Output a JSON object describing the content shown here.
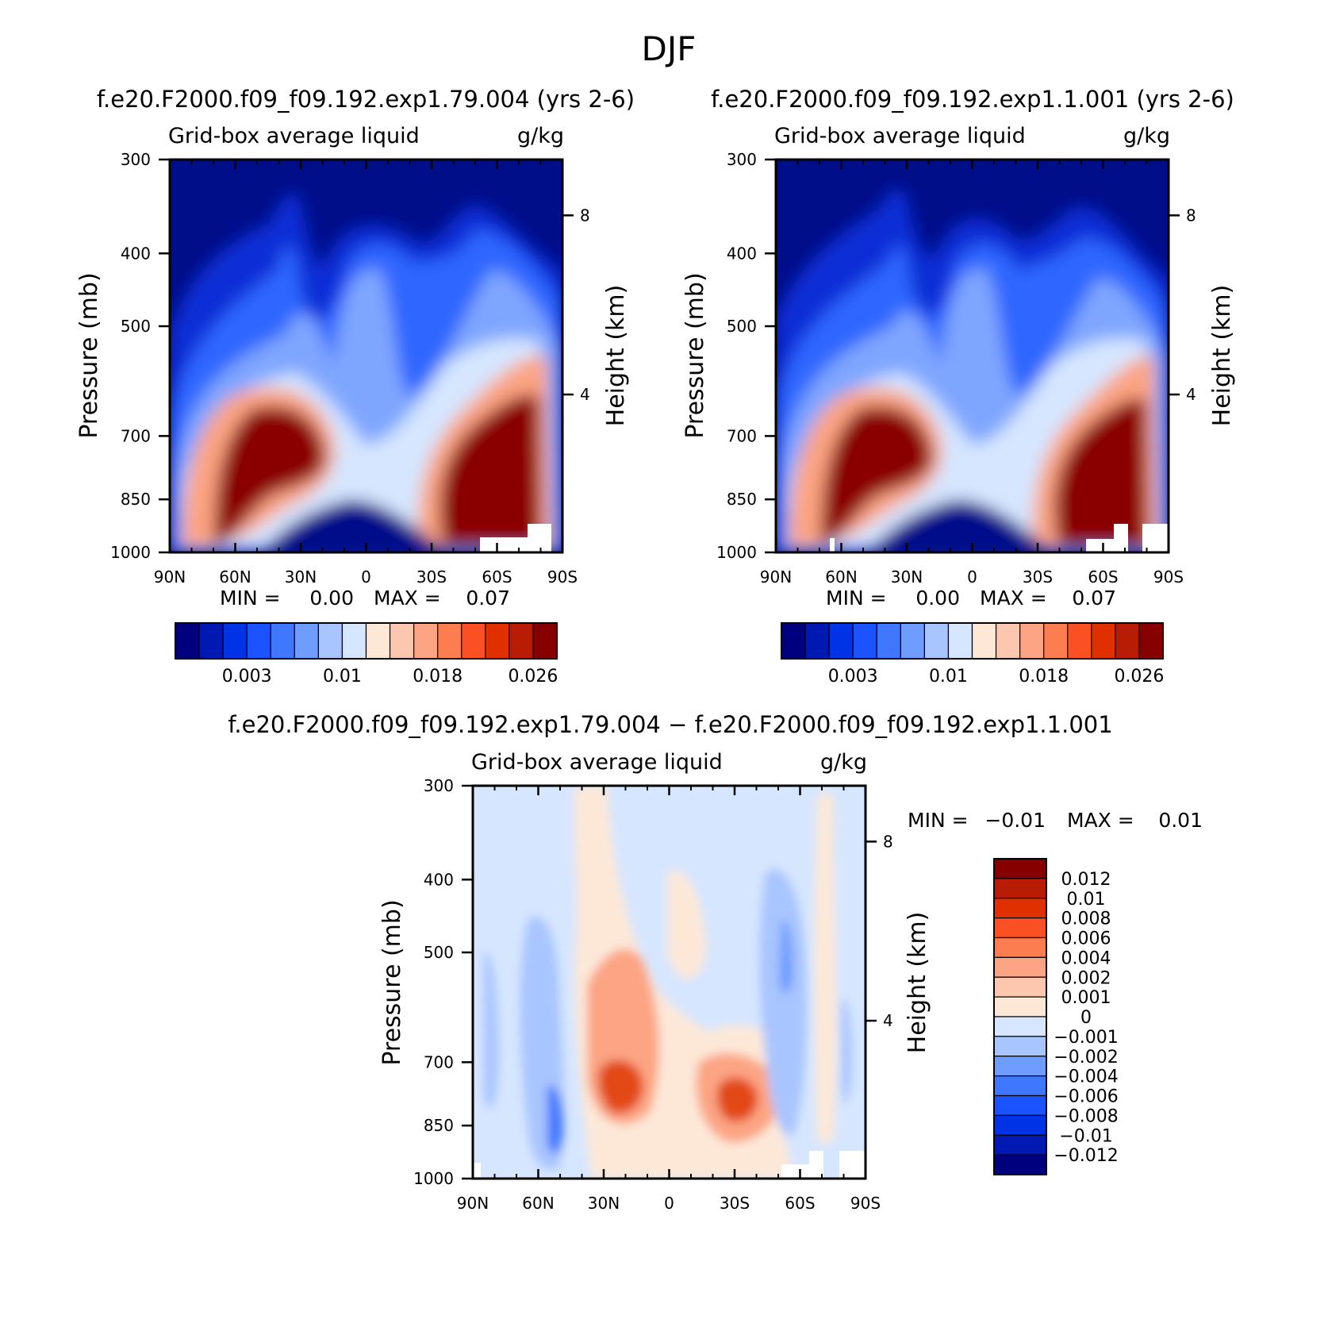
{
  "page_title": "DJF",
  "chart_data": [
    {
      "type": "heatmap",
      "id": "panel1",
      "run_title": "f.e20.F2000.f09_f09.192.exp1.79.004 (yrs 2-6)",
      "field_label": "Grid-box average liquid",
      "units": "g/kg",
      "ylabel": "Pressure (mb)",
      "y2label": "Height (km)",
      "x_ticks": [
        "90N",
        "60N",
        "30N",
        "0",
        "30S",
        "60S",
        "90S"
      ],
      "y_ticks": [
        "300",
        "400",
        "500",
        "700",
        "850",
        "1000"
      ],
      "y2_ticks": [
        "8",
        "4"
      ],
      "min_label": "MIN =",
      "min_value": "0.00",
      "max_label": "MAX =",
      "max_value": "0.07",
      "colorbar_labels": [
        "0.003",
        "0.01",
        "0.018",
        "0.026"
      ],
      "colorbar_colors": [
        "#00007f",
        "#0019b3",
        "#0033e6",
        "#1a53ff",
        "#4077ff",
        "#6f9cff",
        "#a9c5ff",
        "#d6e6ff",
        "#fde8d8",
        "#fdc7af",
        "#fca483",
        "#fc7d4f",
        "#fa5024",
        "#e03000",
        "#b81c04",
        "#860000"
      ]
    },
    {
      "type": "heatmap",
      "id": "panel2",
      "run_title": "f.e20.F2000.f09_f09.192.exp1.1.001 (yrs 2-6)",
      "field_label": "Grid-box average liquid",
      "units": "g/kg",
      "ylabel": "Pressure (mb)",
      "y2label": "Height (km)",
      "x_ticks": [
        "90N",
        "60N",
        "30N",
        "0",
        "30S",
        "60S",
        "90S"
      ],
      "y_ticks": [
        "300",
        "400",
        "500",
        "700",
        "850",
        "1000"
      ],
      "y2_ticks": [
        "8",
        "4"
      ],
      "min_label": "MIN =",
      "min_value": "0.00",
      "max_label": "MAX =",
      "max_value": "0.07",
      "colorbar_labels": [
        "0.003",
        "0.01",
        "0.018",
        "0.026"
      ],
      "colorbar_colors": [
        "#00007f",
        "#0019b3",
        "#0033e6",
        "#1a53ff",
        "#4077ff",
        "#6f9cff",
        "#a9c5ff",
        "#d6e6ff",
        "#fde8d8",
        "#fdc7af",
        "#fca483",
        "#fc7d4f",
        "#fa5024",
        "#e03000",
        "#b81c04",
        "#860000"
      ]
    },
    {
      "type": "heatmap",
      "id": "panel3",
      "run_title": "f.e20.F2000.f09_f09.192.exp1.79.004 − f.e20.F2000.f09_f09.192.exp1.1.001",
      "field_label": "Grid-box average liquid",
      "units": "g/kg",
      "ylabel": "Pressure (mb)",
      "y2label": "Height (km)",
      "x_ticks": [
        "90N",
        "60N",
        "30N",
        "0",
        "30S",
        "60S",
        "90S"
      ],
      "y_ticks": [
        "300",
        "400",
        "500",
        "700",
        "850",
        "1000"
      ],
      "y2_ticks": [
        "8",
        "4"
      ],
      "min_label": "MIN =",
      "min_value": "−0.01",
      "max_label": "MAX =",
      "max_value": "0.01",
      "colorbar_labels": [
        "0.012",
        "0.01",
        "0.008",
        "0.006",
        "0.004",
        "0.002",
        "0.001",
        "0",
        "−0.001",
        "−0.002",
        "−0.004",
        "−0.006",
        "−0.008",
        "−0.01",
        "−0.012"
      ],
      "colorbar_colors": [
        "#860000",
        "#b81c04",
        "#e03000",
        "#fa5024",
        "#fc7d4f",
        "#fca483",
        "#fdc7af",
        "#fde8d8",
        "#d6e6ff",
        "#a9c5ff",
        "#6f9cff",
        "#4077ff",
        "#1a53ff",
        "#0033e6",
        "#0019b3",
        "#00007f"
      ]
    }
  ]
}
